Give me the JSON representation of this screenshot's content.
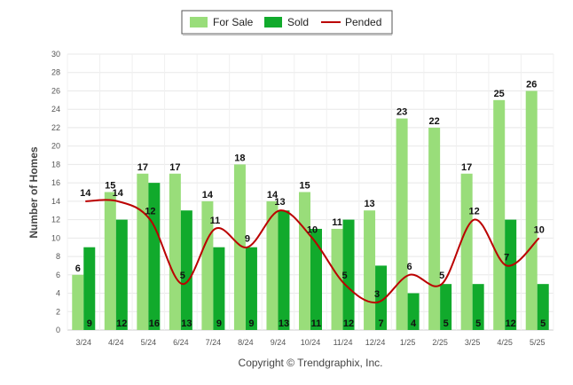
{
  "chart_data": {
    "type": "bar",
    "categories": [
      "3/24",
      "4/24",
      "5/24",
      "6/24",
      "7/24",
      "8/24",
      "9/24",
      "10/24",
      "11/24",
      "12/24",
      "1/25",
      "2/25",
      "3/25",
      "4/25",
      "5/25"
    ],
    "series": [
      {
        "name": "For Sale",
        "type": "bar",
        "color": "#99dd7a",
        "values": [
          6,
          15,
          17,
          17,
          14,
          18,
          14,
          15,
          11,
          13,
          23,
          22,
          17,
          25,
          26
        ]
      },
      {
        "name": "Sold",
        "type": "bar",
        "color": "#11aa2c",
        "values": [
          9,
          12,
          16,
          13,
          9,
          9,
          13,
          11,
          12,
          7,
          4,
          5,
          5,
          12,
          5
        ]
      },
      {
        "name": "Pended",
        "type": "line",
        "color": "#bb0000",
        "values": [
          14,
          14,
          12,
          5,
          11,
          9,
          13,
          10,
          5,
          3,
          6,
          5,
          12,
          7,
          10
        ]
      }
    ],
    "xlabel": "",
    "ylabel": "Number of Homes",
    "ylim": [
      0,
      30
    ],
    "yticks": [
      "0",
      "2",
      "4",
      "6",
      "8",
      "10",
      "12",
      "14",
      "16",
      "18",
      "20",
      "22",
      "24",
      "26",
      "28",
      "30"
    ],
    "grid": true,
    "legend_position": "top-center",
    "data_labels": true
  },
  "footer": {
    "credit": "Copyright © Trendgraphix, Inc."
  }
}
